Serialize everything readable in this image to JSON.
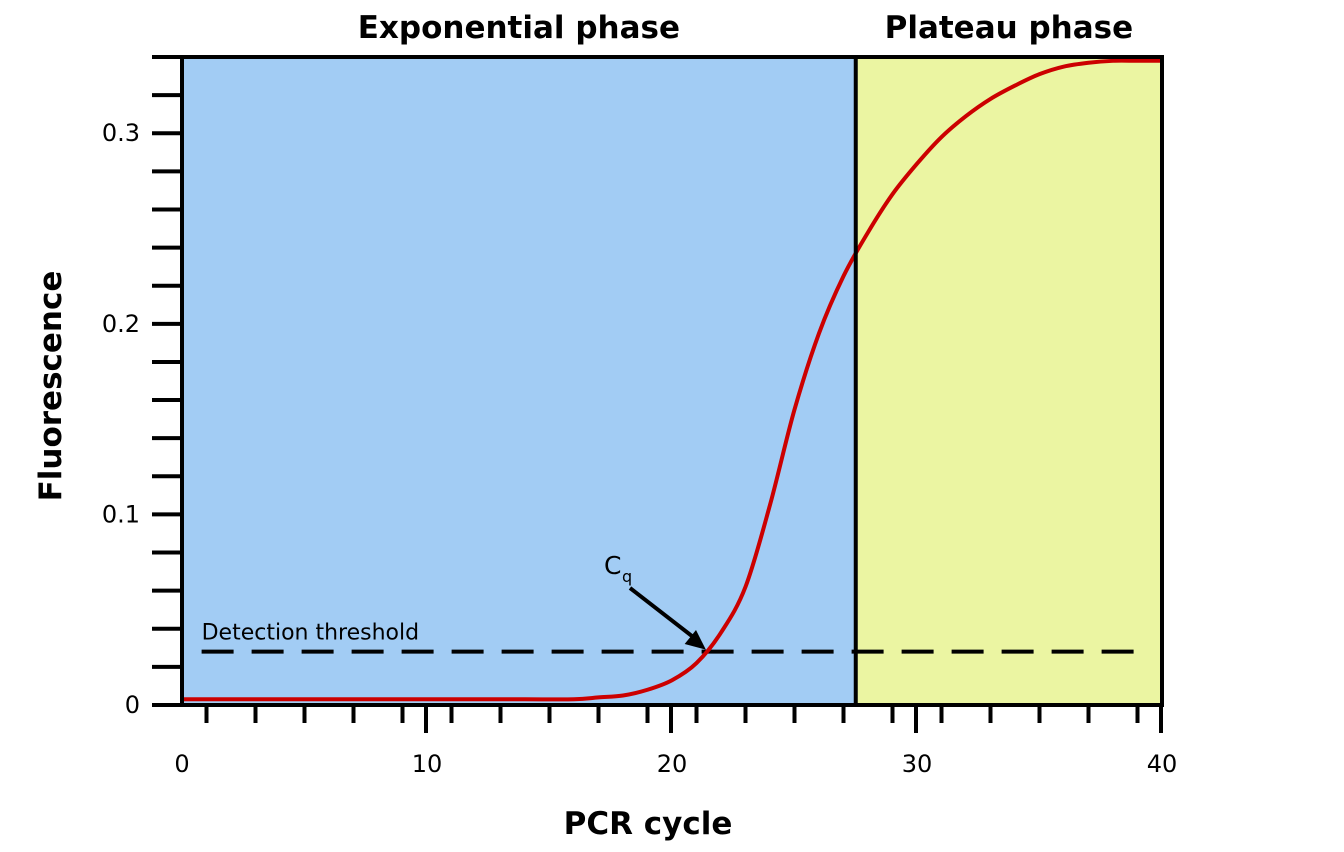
{
  "chart_data": {
    "type": "line",
    "xlabel": "PCR cycle",
    "ylabel": "Fluorescence",
    "xlim": [
      0,
      40
    ],
    "ylim": [
      0,
      0.34
    ],
    "x_ticks": [
      0,
      10,
      20,
      30,
      40
    ],
    "x_tick_labels": [
      "0",
      "10",
      "20",
      "30",
      "40"
    ],
    "y_ticks": [
      0,
      0.1,
      0.2,
      0.3
    ],
    "y_tick_labels": [
      "0",
      "0.1",
      "0.2",
      "0.3"
    ],
    "grid": false,
    "regions": [
      {
        "label": "Exponential phase",
        "x_start": 0,
        "x_end": 27.5,
        "color": "#a2ccf4"
      },
      {
        "label": "Plateau phase",
        "x_start": 27.5,
        "x_end": 40,
        "color": "#ebf5a2"
      }
    ],
    "series": [
      {
        "color": "#cc0000",
        "x": [
          0,
          2,
          4,
          6,
          8,
          10,
          12,
          14,
          16,
          17,
          18,
          19,
          20,
          21,
          22,
          23,
          24,
          25,
          26,
          27,
          28,
          29,
          30,
          31,
          32,
          33,
          34,
          35,
          36,
          37,
          38,
          39,
          40
        ],
        "y": [
          0.003,
          0.003,
          0.003,
          0.003,
          0.003,
          0.003,
          0.003,
          0.003,
          0.003,
          0.004,
          0.005,
          0.008,
          0.013,
          0.022,
          0.038,
          0.062,
          0.105,
          0.155,
          0.195,
          0.225,
          0.248,
          0.268,
          0.284,
          0.298,
          0.309,
          0.318,
          0.325,
          0.331,
          0.335,
          0.337,
          0.338,
          0.338,
          0.338
        ]
      }
    ],
    "threshold": {
      "label": "Detection threshold",
      "y": 0.028,
      "style": "dashed",
      "color": "#000000"
    },
    "annotations": [
      {
        "text": "C",
        "subscript": "q",
        "points_to_x": 21.3,
        "points_to_y": 0.028
      }
    ]
  }
}
